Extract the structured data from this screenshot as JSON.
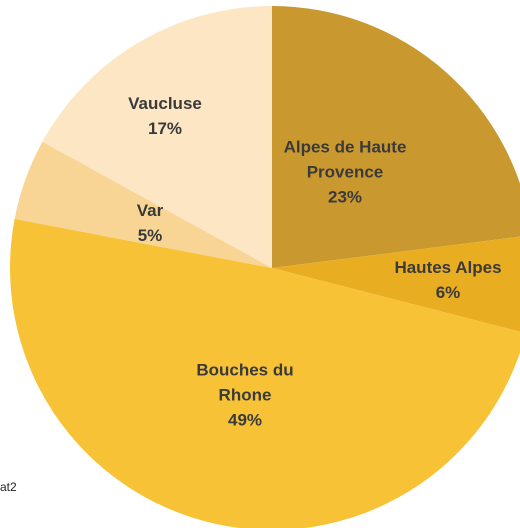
{
  "chart_data": {
    "type": "pie",
    "categories": [
      "Alpes de Haute Provence",
      "Hautes Alpes",
      "Bouches du Rhone",
      "Var",
      "Vaucluse"
    ],
    "values": [
      23,
      6,
      49,
      5,
      17
    ],
    "value_labels": [
      "23%",
      "6%",
      "49%",
      "5%",
      "17%"
    ],
    "colors": [
      "#c9982f",
      "#e9ad22",
      "#f7c235",
      "#f8d595",
      "#fde6c4"
    ],
    "note": "at2"
  }
}
